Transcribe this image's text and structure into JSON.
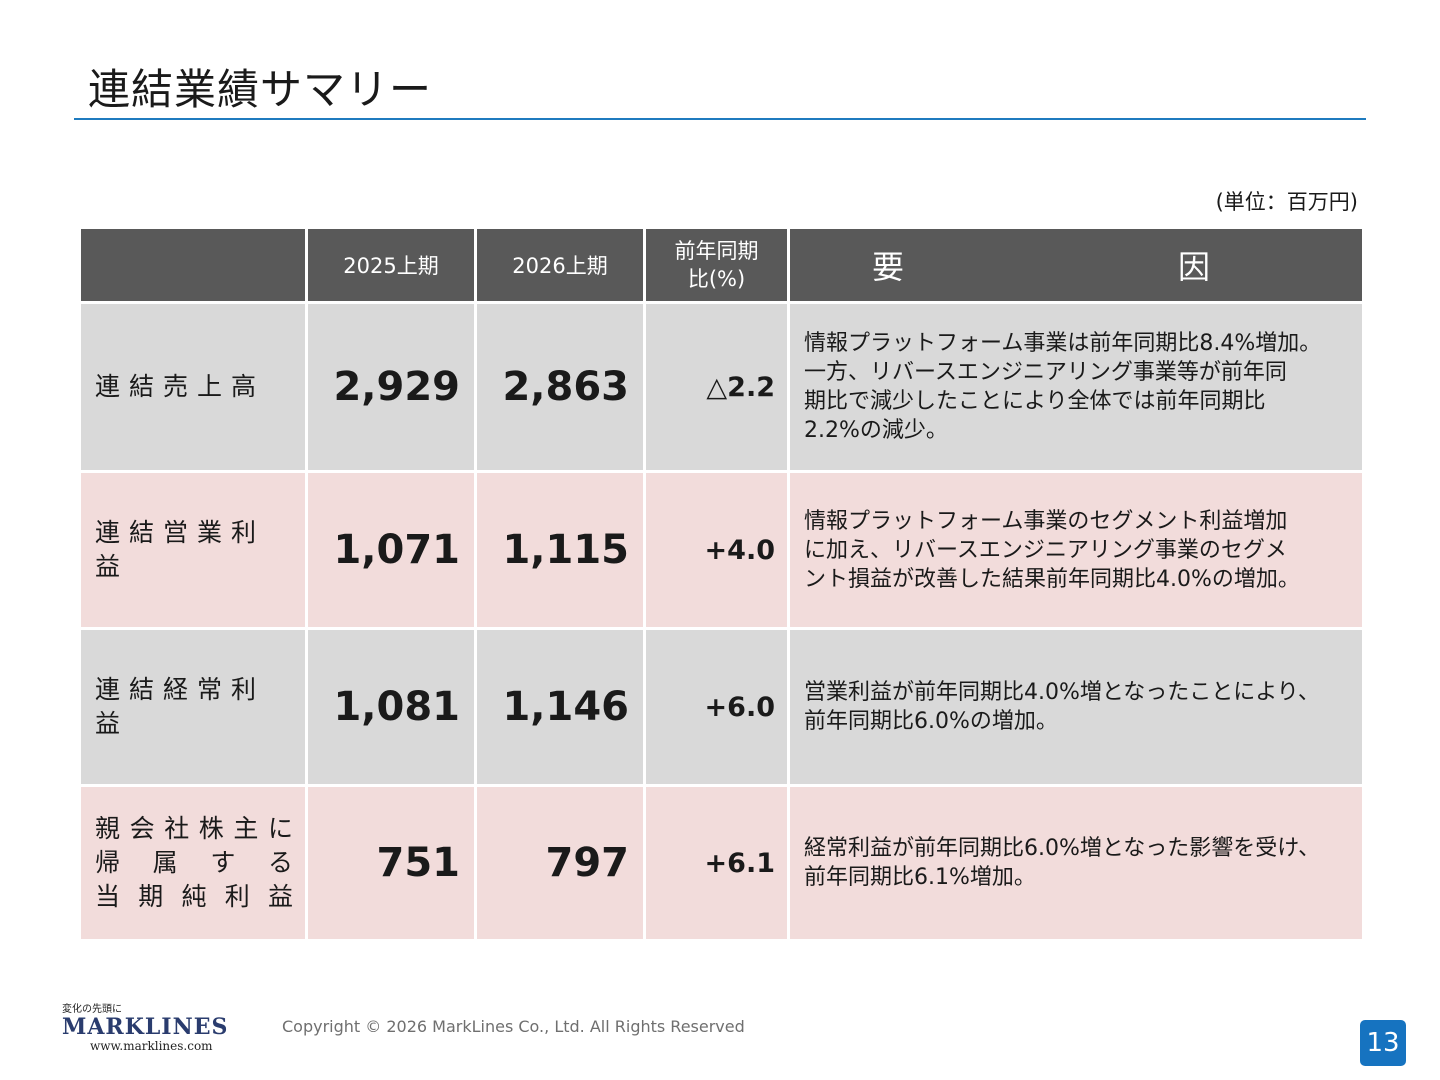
{
  "page": {
    "title": "連結業績サマリー",
    "unit": "(単位：百万円)"
  },
  "table": {
    "headers": [
      "",
      "2025上期",
      "2026上期",
      "前年同期比(%)",
      "要　　因"
    ],
    "header_yoy_line1": "前年同期",
    "header_yoy_line2": "比(%)",
    "rows": [
      {
        "label": "連結売上高",
        "v2025": "2,929",
        "v2026": "2,863",
        "yoy": "△2.2",
        "factor_lines": [
          "情報プラットフォーム事業は前年同期比8.4%増加。",
          "一方、リバースエンジニアリング事業等が前年同",
          "期比で減少したことにより全体では前年同期比",
          "2.2%の減少。"
        ]
      },
      {
        "label": "連結営業利益",
        "v2025": "1,071",
        "v2026": "1,115",
        "yoy": "+4.0",
        "factor_lines": [
          "情報プラットフォーム事業のセグメント利益増加",
          "に加え、リバースエンジニアリング事業のセグメ",
          "ント損益が改善した結果前年同期比4.0%の増加。"
        ]
      },
      {
        "label": "連結経常利益",
        "v2025": "1,081",
        "v2026": "1,146",
        "yoy": "+6.0",
        "factor_lines": [
          "営業利益が前年同期比4.0%増となったことにより、",
          "前年同期比6.0%の増加。"
        ]
      },
      {
        "label_lines": [
          "親会社株主に",
          "帰属する",
          "当期純利益"
        ],
        "v2025": "751",
        "v2026": "797",
        "yoy": "+6.1",
        "factor_lines": [
          "経常利益が前年同期比6.0%増となった影響を受け、",
          "前年同期比6.1%増加。"
        ]
      }
    ]
  },
  "footer": {
    "logo_tagline": "変化の先頭に",
    "logo_word": "MARKLINES",
    "logo_url": "www.marklines.com",
    "copyright": "Copyright © 2026 MarkLines Co., Ltd. All Rights Reserved",
    "page_number": "13"
  },
  "colors": {
    "title_rule": "#1f7bbf",
    "header_bg": "#595959",
    "row_gray": "#d9d9d9",
    "row_pink": "#f2dcdb",
    "page_badge": "#1673c0"
  }
}
